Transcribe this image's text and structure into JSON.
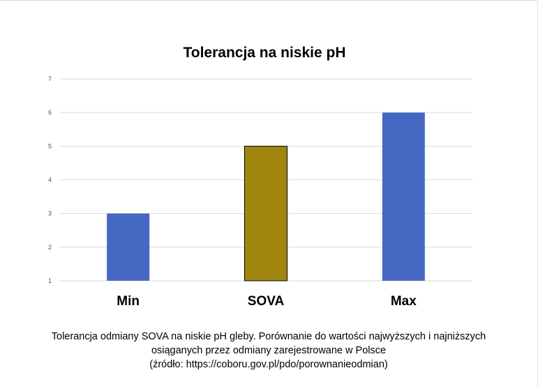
{
  "chart_data": {
    "type": "bar",
    "title": "Tolerancja na niskie pH",
    "categories": [
      "Min",
      "SOVA",
      "Max"
    ],
    "values": [
      3,
      5,
      6
    ],
    "colors": [
      "#4568c2",
      "#a0860f",
      "#4568c2"
    ],
    "ylim": [
      1,
      7
    ],
    "yticks": [
      "1",
      "2",
      "3",
      "4",
      "5",
      "6",
      "7"
    ],
    "grid": true,
    "legend": "none"
  },
  "caption": {
    "line1": "Tolerancja odmiany SOVA na niskie pH gleby. Porównanie do wartości najwyższych i najniższych",
    "line2": "osiąganych przez odmiany zarejestrowane w Polsce",
    "line3": "(źródło: https://coboru.gov.pl/pdo/porownanieodmian)"
  }
}
